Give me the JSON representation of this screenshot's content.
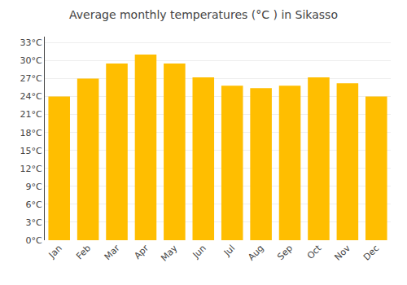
{
  "chart_data": {
    "type": "bar",
    "title": "Average monthly temperatures (°C ) in Sikasso",
    "categories": [
      "Jan",
      "Feb",
      "Mar",
      "Apr",
      "May",
      "Jun",
      "Jul",
      "Aug",
      "Sep",
      "Oct",
      "Nov",
      "Dec"
    ],
    "values": [
      24,
      27,
      29.5,
      31,
      29.5,
      27.2,
      25.8,
      25.4,
      25.8,
      27.2,
      26.2,
      24
    ],
    "color": "#FFBE00",
    "ylim": [
      0,
      34
    ],
    "yticks": [
      {
        "value": 0,
        "label": "0°C"
      },
      {
        "value": 3,
        "label": "3°C"
      },
      {
        "value": 6,
        "label": "6°C"
      },
      {
        "value": 9,
        "label": "9°C"
      },
      {
        "value": 12,
        "label": "12°C"
      },
      {
        "value": 15,
        "label": "15°C"
      },
      {
        "value": 18,
        "label": "18°C"
      },
      {
        "value": 21,
        "label": "21°C"
      },
      {
        "value": 24,
        "label": "24°C"
      },
      {
        "value": 27,
        "label": "27°C"
      },
      {
        "value": 30,
        "label": "30°C"
      },
      {
        "value": 33,
        "label": "33°C"
      }
    ],
    "grid": true
  }
}
